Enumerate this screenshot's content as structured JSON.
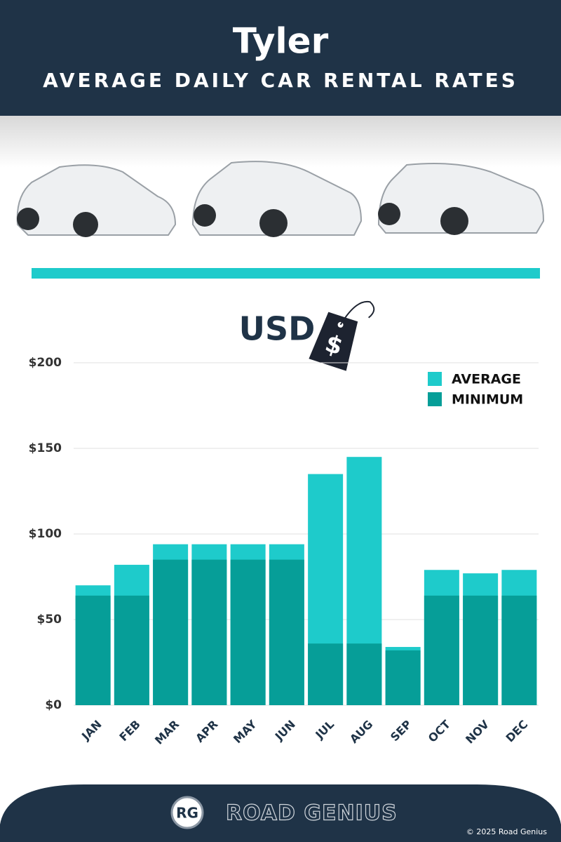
{
  "header": {
    "title": "Tyler",
    "subtitle": "AVERAGE DAILY CAR RENTAL RATES"
  },
  "chart_data": {
    "type": "bar",
    "unit_label": "USD",
    "tag_symbol": "$",
    "categories": [
      "JAN",
      "FEB",
      "MAR",
      "APR",
      "MAY",
      "JUN",
      "JUL",
      "AUG",
      "SEP",
      "OCT",
      "NOV",
      "DEC"
    ],
    "series": [
      {
        "name": "AVERAGE",
        "color": "#1ecbcb",
        "values": [
          70,
          82,
          94,
          94,
          94,
          94,
          135,
          145,
          34,
          79,
          77,
          79
        ]
      },
      {
        "name": "MINIMUM",
        "color": "#069e98",
        "values": [
          64,
          64,
          85,
          85,
          85,
          85,
          36,
          36,
          32,
          64,
          64,
          64
        ]
      }
    ],
    "ylim": [
      0,
      200
    ],
    "yticks": [
      {
        "value": 0,
        "label": "$0"
      },
      {
        "value": 50,
        "label": "$50"
      },
      {
        "value": 100,
        "label": "$100"
      },
      {
        "value": 150,
        "label": "$150"
      },
      {
        "value": 200,
        "label": "$200"
      }
    ],
    "grid": true,
    "legend": "top-right"
  },
  "footer": {
    "logo": "RG",
    "brand": "ROAD GENIUS",
    "copyright": "© 2025 Road Genius"
  }
}
